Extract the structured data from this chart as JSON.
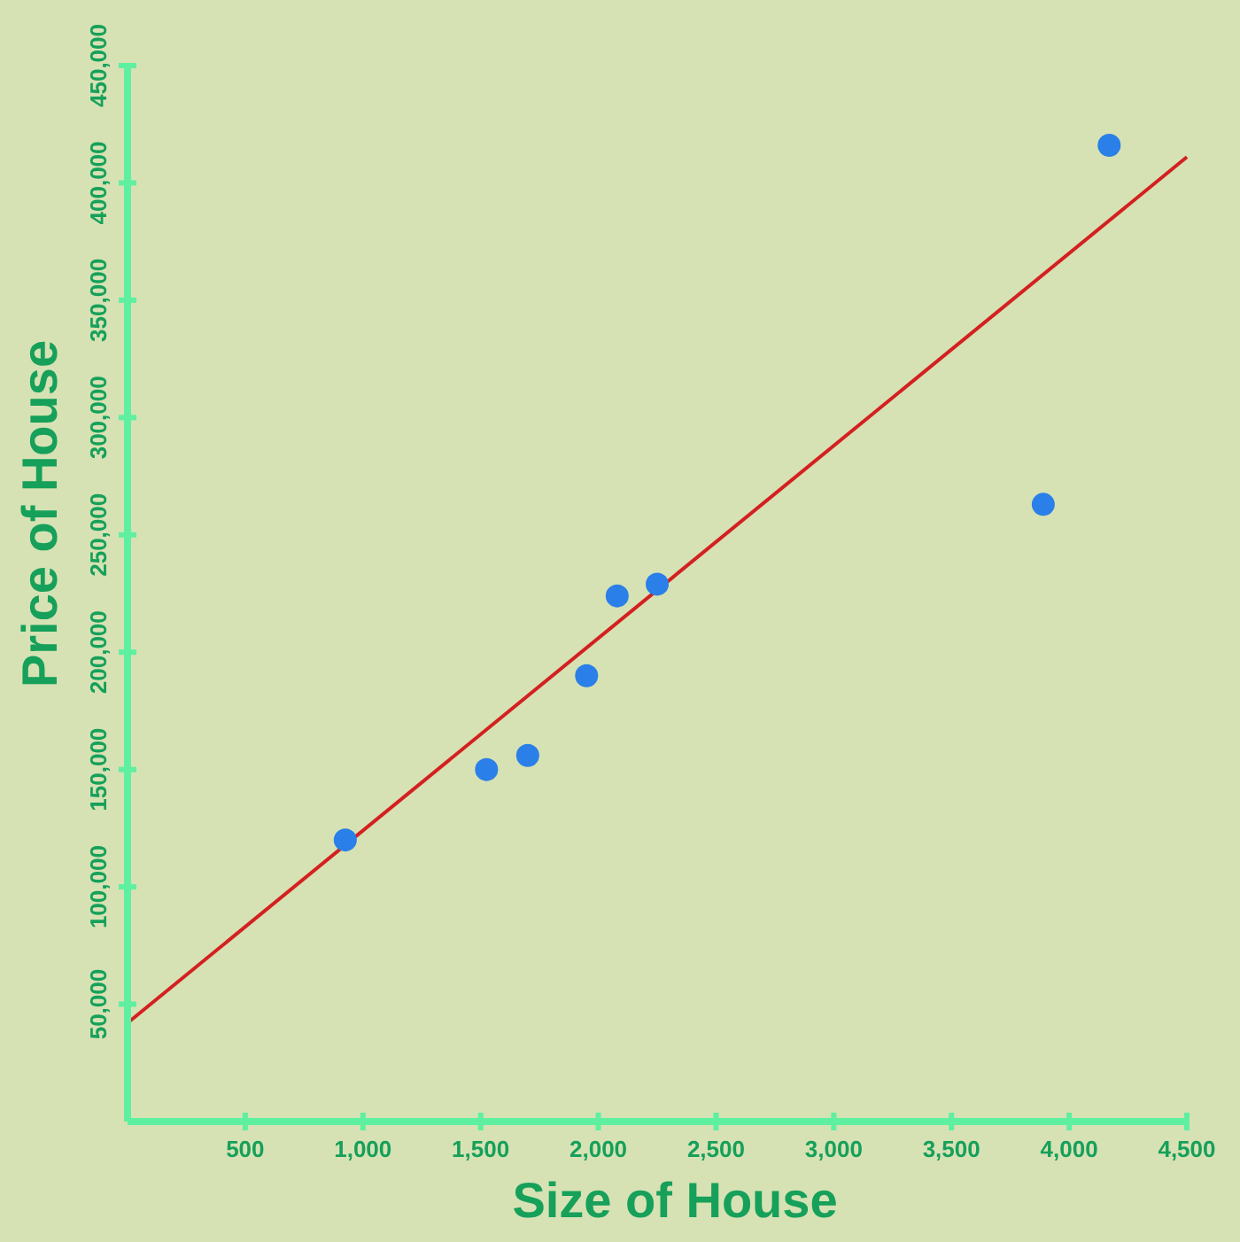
{
  "chart_data": {
    "type": "scatter",
    "xlabel": "Size of House",
    "ylabel": "Price of House",
    "xlim": [
      0,
      4500
    ],
    "ylim": [
      0,
      450000
    ],
    "xticks": [
      {
        "value": 500,
        "label": "500"
      },
      {
        "value": 1000,
        "label": "1,000"
      },
      {
        "value": 1500,
        "label": "1,500"
      },
      {
        "value": 2000,
        "label": "2,000"
      },
      {
        "value": 2500,
        "label": "2,500"
      },
      {
        "value": 3000,
        "label": "3,000"
      },
      {
        "value": 3500,
        "label": "3,500"
      },
      {
        "value": 4000,
        "label": "4,000"
      },
      {
        "value": 4500,
        "label": "4,500"
      }
    ],
    "yticks": [
      {
        "value": 50000,
        "label": "50,000"
      },
      {
        "value": 100000,
        "label": "100,000"
      },
      {
        "value": 150000,
        "label": "150,000"
      },
      {
        "value": 200000,
        "label": "200,000"
      },
      {
        "value": 250000,
        "label": "250,000"
      },
      {
        "value": 300000,
        "label": "300,000"
      },
      {
        "value": 350000,
        "label": "350,000"
      },
      {
        "value": 400000,
        "label": "400,000"
      },
      {
        "value": 450000,
        "label": "450,000"
      }
    ],
    "grid": false,
    "marker": "circle",
    "series": [
      {
        "color": "#2a7fe8",
        "x": [
          925,
          1525,
          1700,
          1950,
          2080,
          2250,
          3890,
          4170
        ],
        "values": [
          120000,
          150000,
          156000,
          190000,
          224000,
          229000,
          263000,
          416000
        ]
      },
      {
        "type": "line",
        "color": "#d42020",
        "marker": "none",
        "line_style": "solid",
        "x": [
          0,
          4500
        ],
        "values": [
          42000,
          411000
        ]
      }
    ]
  }
}
